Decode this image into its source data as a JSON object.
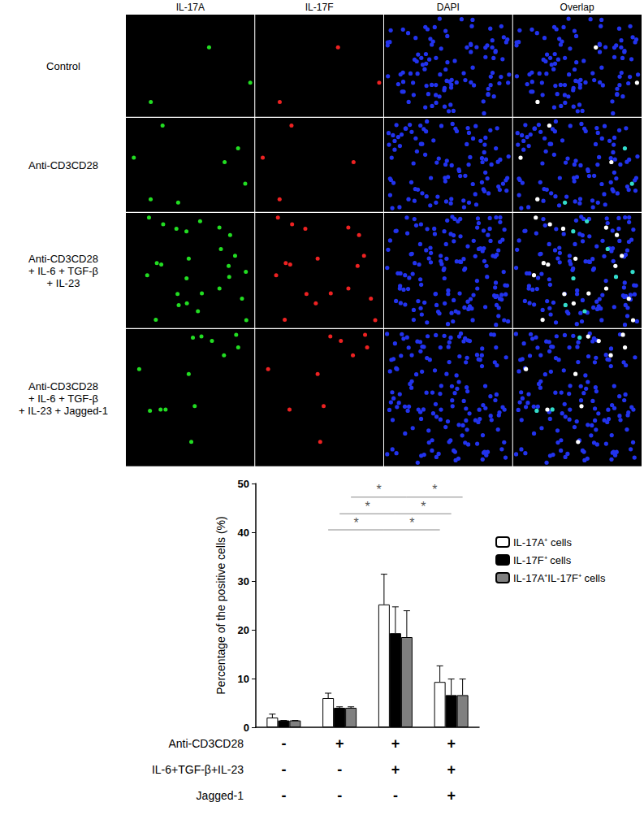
{
  "panels": {
    "columns": [
      "IL-17A",
      "IL-17F",
      "DAPI",
      "Overlap"
    ],
    "rows": [
      [
        "Control"
      ],
      [
        "Anti-CD3CD28"
      ],
      [
        "Anti-CD3CD28",
        "+ IL-6 + TGF-β",
        "+ IL-23"
      ],
      [
        "Anti-CD3CD28",
        "+ IL-6 + TGF-β",
        "+ IL-23 + Jagged-1"
      ]
    ]
  },
  "chart_data": {
    "type": "bar",
    "y_label": "Percentage of the positive cells (%)",
    "categories": [
      null,
      null,
      null,
      null
    ],
    "series": [
      {
        "name": "IL-17A⁺ cells",
        "color": "#ffffff",
        "values": [
          2.0,
          6.0,
          25.2,
          9.3
        ],
        "errors": [
          0.7,
          1.0,
          6.2,
          3.3
        ]
      },
      {
        "name": "IL-17F⁺ cells",
        "color": "#000000",
        "values": [
          1.4,
          4.0,
          19.3,
          6.6
        ],
        "errors": [
          0.0,
          0.2,
          5.4,
          3.3
        ]
      },
      {
        "name": "IL-17A⁺IL-17F⁺ cells",
        "color": "#808080",
        "values": [
          1.4,
          4.0,
          18.5,
          6.6
        ],
        "errors": [
          0.0,
          0.2,
          5.4,
          3.3
        ]
      }
    ],
    "ylim": [
      0,
      50
    ],
    "yticks": [
      0,
      10,
      20,
      30,
      40,
      50
    ],
    "grid": false,
    "legend": "right",
    "tick_labels": "y",
    "conditions": [
      {
        "label": "Anti-CD3CD28",
        "marks": [
          "-",
          "+",
          "+",
          "+"
        ]
      },
      {
        "label": "IL-6+TGF-β+IL-23",
        "marks": [
          "-",
          "-",
          "+",
          "+"
        ]
      },
      {
        "label": "Jagged-1",
        "marks": [
          "-",
          "-",
          "-",
          "+"
        ]
      }
    ],
    "significance": [
      {
        "from": 1,
        "to": 2,
        "series": 0,
        "y": 40.5,
        "label": "*"
      },
      {
        "from": 1,
        "to": 2,
        "series": 1,
        "y": 43.8,
        "label": "*"
      },
      {
        "from": 1,
        "to": 2,
        "series": 2,
        "y": 47.2,
        "label": "*"
      },
      {
        "from": 2,
        "to": 3,
        "series": 0,
        "y": 40.5,
        "label": "*"
      },
      {
        "from": 2,
        "to": 3,
        "series": 1,
        "y": 43.8,
        "label": "*"
      },
      {
        "from": 2,
        "to": 3,
        "series": 2,
        "y": 47.2,
        "label": "*"
      }
    ]
  }
}
